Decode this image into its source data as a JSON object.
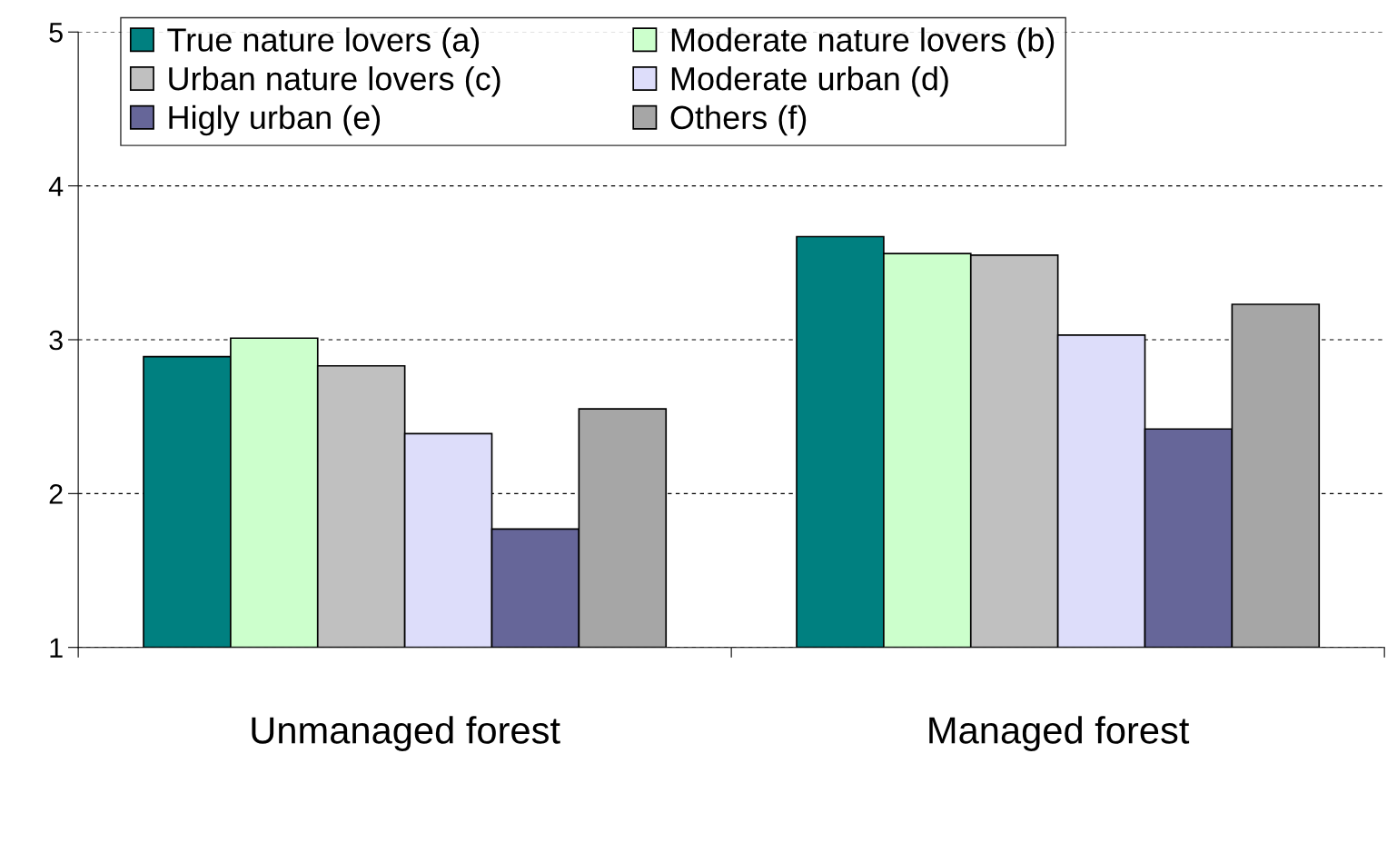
{
  "chart_data": {
    "type": "bar",
    "categories": [
      "Unmanaged forest",
      "Managed forest"
    ],
    "series": [
      {
        "name": "True nature lovers (a)",
        "color": "#008080",
        "values": [
          2.89,
          3.67
        ]
      },
      {
        "name": "Moderate nature lovers (b)",
        "color": "#ccffcc",
        "values": [
          3.01,
          3.56
        ]
      },
      {
        "name": "Urban nature lovers (c)",
        "color": "#c0c0c0",
        "values": [
          2.83,
          3.55
        ]
      },
      {
        "name": "Moderate urban (d)",
        "color": "#ddddfa",
        "values": [
          2.39,
          3.03
        ]
      },
      {
        "name": "Higly urban (e)",
        "color": "#666699",
        "values": [
          1.77,
          2.42
        ]
      },
      {
        "name": "Others (f)",
        "color": "#a6a6a6",
        "values": [
          2.55,
          3.23
        ]
      }
    ],
    "ylim": [
      1,
      5
    ],
    "yticks": [
      1,
      2,
      3,
      4,
      5
    ],
    "grid": "y",
    "legend": "top left"
  }
}
